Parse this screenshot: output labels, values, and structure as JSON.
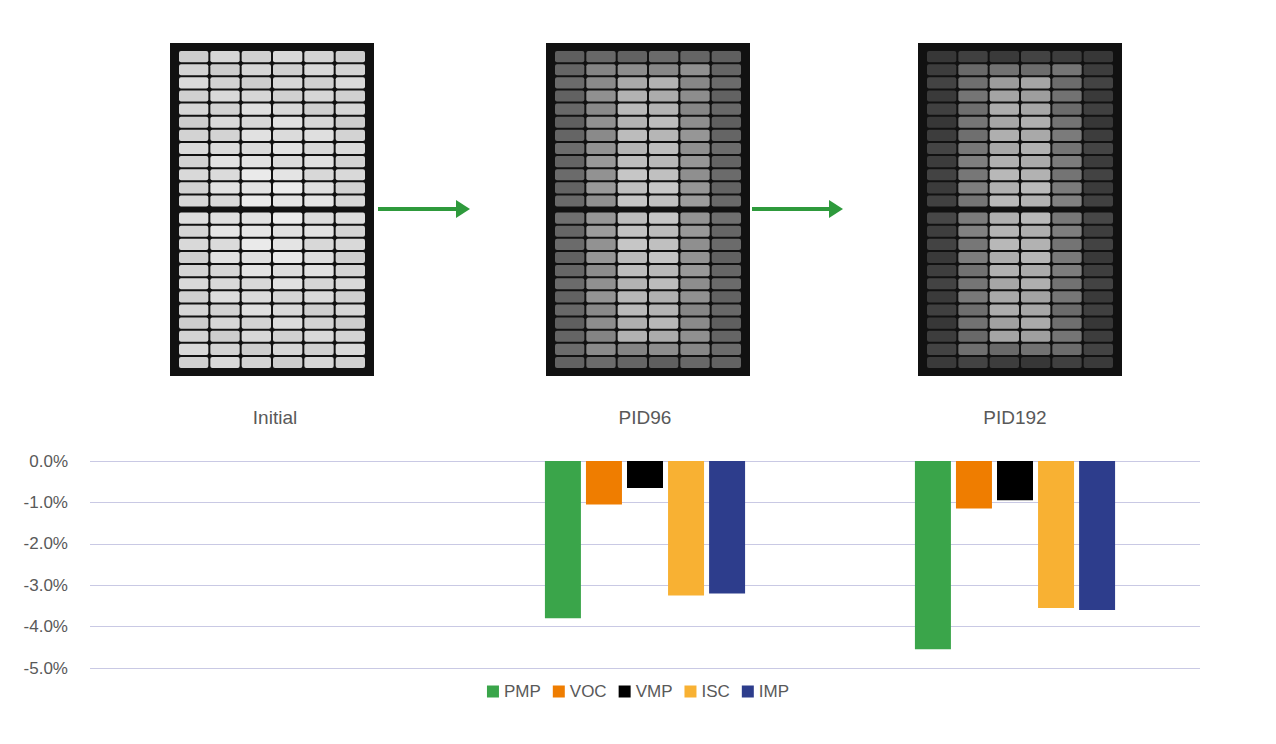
{
  "chart_data": {
    "type": "bar",
    "categories": [
      "Initial",
      "PID96",
      "PID192"
    ],
    "series": [
      {
        "name": "PMP",
        "color": "#3aa54a",
        "values": [
          null,
          -3.8,
          -4.55
        ]
      },
      {
        "name": "VOC",
        "color": "#ef7d00",
        "values": [
          null,
          -1.05,
          -1.15
        ]
      },
      {
        "name": "VMP",
        "color": "#000000",
        "values": [
          null,
          -0.65,
          -0.95
        ]
      },
      {
        "name": "ISC",
        "color": "#f8b133",
        "values": [
          null,
          -3.25,
          -3.55
        ]
      },
      {
        "name": "IMP",
        "color": "#2d3d8c",
        "values": [
          null,
          -3.2,
          -3.6
        ]
      }
    ],
    "ylim": [
      -5,
      0
    ],
    "yticks": [
      {
        "value": -5,
        "label": "-5.0%"
      },
      {
        "value": -4,
        "label": "-4.0%"
      },
      {
        "value": -3,
        "label": "-3.0%"
      },
      {
        "value": -2,
        "label": "-2.0%"
      },
      {
        "value": -1,
        "label": "-1.0%"
      },
      {
        "value": 0,
        "label": "0.0%"
      }
    ],
    "grid": true,
    "legend": "bottom"
  }
}
